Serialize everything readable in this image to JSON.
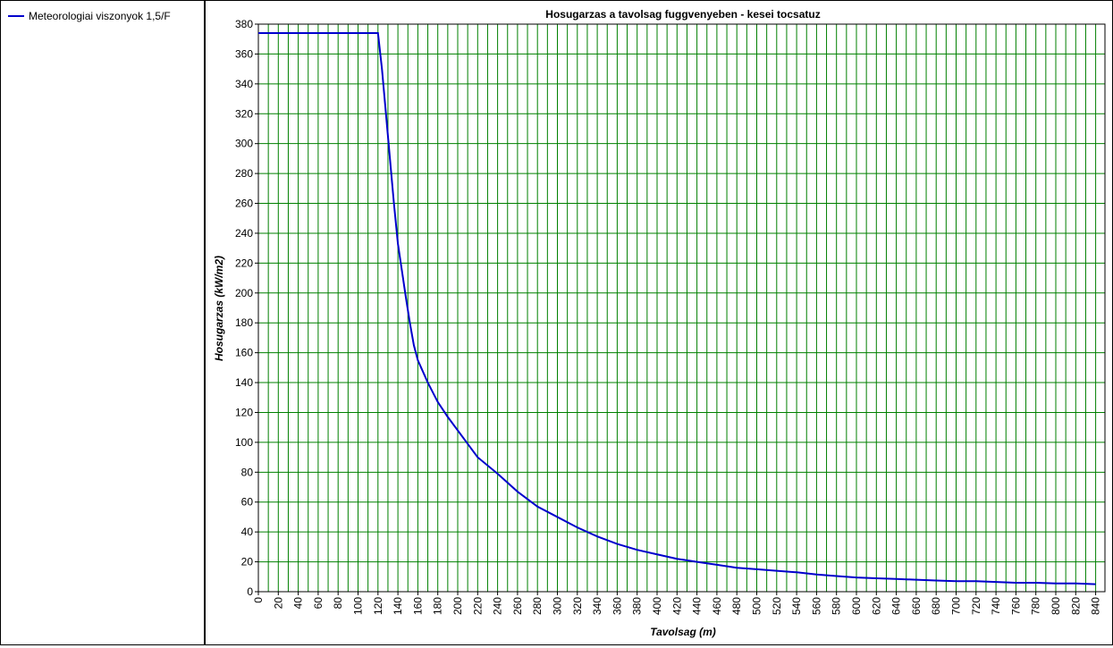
{
  "legend": {
    "items": [
      {
        "label": "Meteorologiai viszonyok 1,5/F",
        "color": "#0000cc"
      }
    ]
  },
  "chart_data": {
    "type": "line",
    "title": "Hosugarzas a tavolsag fuggvenyeben - kesei tocsatuz",
    "xlabel": "Tavolsag (m)",
    "ylabel": "Hosugarzas (kW/m2)",
    "xlim": [
      0,
      850
    ],
    "ylim": [
      0,
      380
    ],
    "xticks": [
      0,
      20,
      40,
      60,
      80,
      100,
      120,
      140,
      160,
      180,
      200,
      220,
      240,
      260,
      280,
      300,
      320,
      340,
      360,
      380,
      400,
      420,
      440,
      460,
      480,
      500,
      520,
      540,
      560,
      580,
      600,
      620,
      640,
      660,
      680,
      700,
      720,
      740,
      760,
      780,
      800,
      820,
      840
    ],
    "yticks": [
      0,
      20,
      40,
      60,
      80,
      100,
      120,
      140,
      160,
      180,
      200,
      220,
      240,
      260,
      280,
      300,
      320,
      340,
      360,
      380
    ],
    "grid": true,
    "grid_color": "#008000",
    "series": [
      {
        "name": "Meteorologiai viszonyok 1,5/F",
        "color": "#0000cc",
        "x": [
          0,
          120,
          124,
          128,
          132,
          136,
          140,
          144,
          148,
          152,
          156,
          160,
          170,
          180,
          190,
          200,
          210,
          220,
          240,
          260,
          280,
          300,
          320,
          340,
          360,
          380,
          400,
          420,
          440,
          460,
          480,
          500,
          520,
          540,
          560,
          580,
          600,
          620,
          640,
          660,
          680,
          700,
          720,
          740,
          760,
          780,
          800,
          820,
          840
        ],
        "y": [
          374,
          374,
          350,
          320,
          290,
          260,
          233,
          215,
          197,
          180,
          165,
          155,
          140,
          127,
          117,
          108,
          99,
          90,
          79,
          67,
          57,
          50,
          43,
          37,
          32,
          28,
          25,
          22,
          20,
          18,
          16,
          15,
          14,
          13,
          11.5,
          10.5,
          9.5,
          9,
          8.5,
          8,
          7.5,
          7,
          7,
          6.5,
          6,
          6,
          5.5,
          5.5,
          5
        ]
      }
    ]
  }
}
